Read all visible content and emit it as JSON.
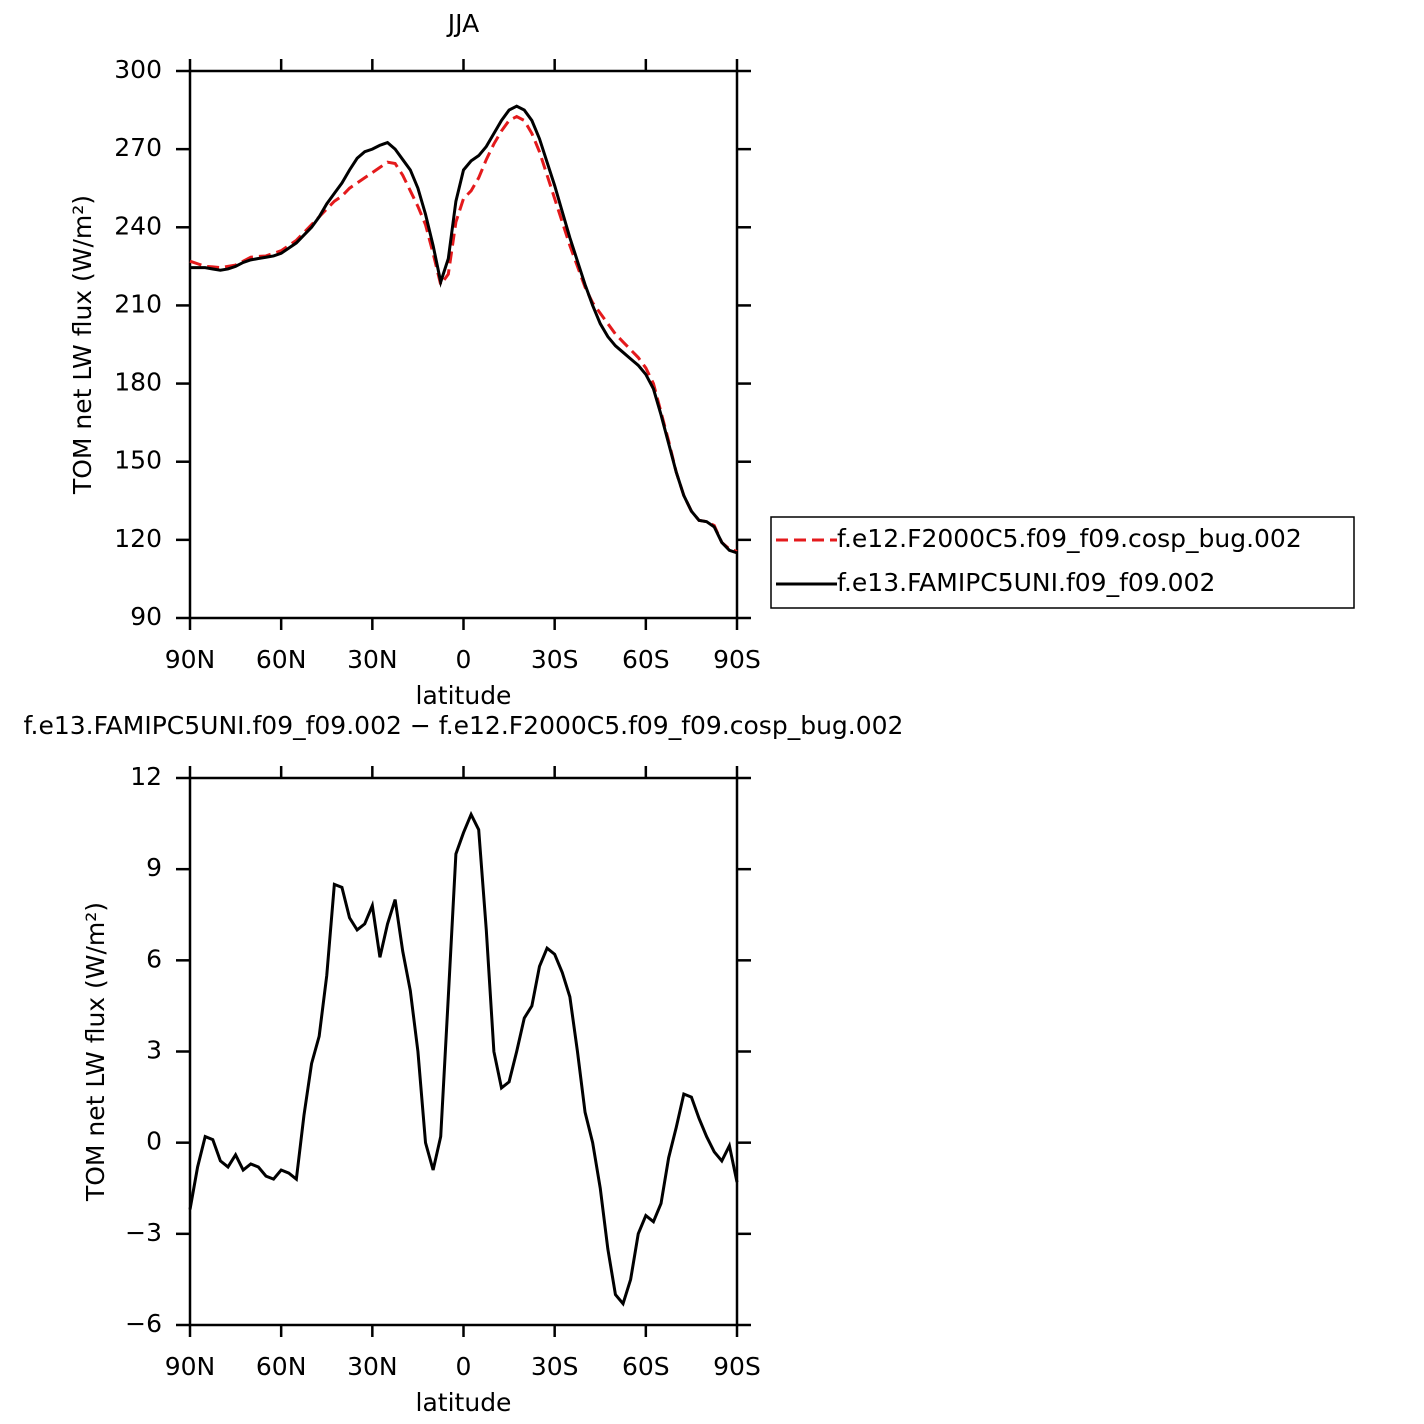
{
  "chart_data": [
    {
      "type": "line",
      "title": "JJA",
      "x_label": "latitude",
      "y_label": "TOM net LW flux (W/m²)",
      "x": [
        90,
        87.5,
        85,
        82.5,
        80,
        77.5,
        75,
        72.5,
        70,
        67.5,
        65,
        62.5,
        60,
        57.5,
        55,
        52.5,
        50,
        47.5,
        45,
        42.5,
        40,
        37.5,
        35,
        32.5,
        30,
        27.5,
        25,
        22.5,
        20,
        17.5,
        15,
        12.5,
        10,
        7.5,
        5,
        2.5,
        0,
        -2.5,
        -5,
        -7.5,
        -10,
        -12.5,
        -15,
        -17.5,
        -20,
        -22.5,
        -25,
        -27.5,
        -30,
        -32.5,
        -35,
        -37.5,
        -40,
        -42.5,
        -45,
        -47.5,
        -50,
        -52.5,
        -55,
        -57.5,
        -60,
        -62.5,
        -65,
        -67.5,
        -70,
        -72.5,
        -75,
        -77.5,
        -80,
        -82.5,
        -85,
        -87.5,
        -90
      ],
      "series": [
        {
          "name": "f.e12.F2000C5.f09_f09.cosp_bug.002",
          "color": "#e41a1c",
          "style": "dashed",
          "values": [
            227,
            226,
            225,
            224.8,
            224.5,
            225,
            225.5,
            227,
            228.5,
            228.8,
            229,
            230,
            231,
            233,
            235,
            238,
            241,
            244,
            247,
            250,
            252,
            255,
            257,
            259,
            261,
            263,
            265,
            264.5,
            260,
            254,
            248,
            241,
            230,
            218,
            222,
            242,
            251,
            254,
            259,
            266,
            272,
            277,
            281,
            282.5,
            281,
            276,
            269,
            260,
            251,
            242,
            233,
            225,
            217,
            211,
            207,
            203,
            199,
            196,
            193,
            190,
            186,
            180,
            169,
            158,
            146,
            137,
            131,
            127.5,
            127,
            125.5,
            119,
            116.5,
            115.5
          ]
        },
        {
          "name": "f.e13.FAMIPC5UNI.f09_f09.002",
          "color": "#000000",
          "style": "solid",
          "values": [
            224.5,
            224.5,
            224.5,
            224,
            223.5,
            224,
            225,
            226.5,
            227.5,
            228,
            228.5,
            229,
            230,
            232,
            234,
            237,
            240,
            244,
            249,
            253,
            257,
            262,
            266.5,
            269,
            270,
            271.5,
            272.5,
            270,
            266,
            262,
            255,
            245,
            233,
            219,
            228,
            250,
            262,
            265.5,
            267.5,
            271,
            276,
            281,
            285,
            286.5,
            285,
            281,
            274,
            265,
            256,
            246,
            236,
            227,
            218,
            210,
            203,
            198,
            194.5,
            192,
            189.5,
            187,
            183.5,
            178,
            168,
            157,
            146,
            137,
            131,
            127.5,
            127,
            125,
            119,
            116,
            115
          ]
        }
      ],
      "xlim": [
        90,
        -90
      ],
      "xticks": [
        {
          "value": 90,
          "label": "90N"
        },
        {
          "value": 60,
          "label": "60N"
        },
        {
          "value": 30,
          "label": "30N"
        },
        0,
        {
          "value": -30,
          "label": "30S"
        },
        {
          "value": -60,
          "label": "60S"
        },
        {
          "value": -90,
          "label": "90S"
        }
      ],
      "ylim": [
        90,
        300
      ],
      "yticks": [
        90,
        120,
        150,
        180,
        210,
        240,
        270,
        300
      ],
      "legend": "outside-right"
    },
    {
      "type": "line",
      "title": "f.e13.FAMIPC5UNI.f09_f09.002 − f.e12.F2000C5.f09_f09.cosp_bug.002",
      "x_label": "latitude",
      "y_label": "TOM net LW flux (W/m²)",
      "x": [
        90,
        87.5,
        85,
        82.5,
        80,
        77.5,
        75,
        72.5,
        70,
        67.5,
        65,
        62.5,
        60,
        57.5,
        55,
        52.5,
        50,
        47.5,
        45,
        42.5,
        40,
        37.5,
        35,
        32.5,
        30,
        27.5,
        25,
        22.5,
        20,
        17.5,
        15,
        12.5,
        10,
        7.5,
        5,
        2.5,
        0,
        -2.5,
        -5,
        -7.5,
        -10,
        -12.5,
        -15,
        -17.5,
        -20,
        -22.5,
        -25,
        -27.5,
        -30,
        -32.5,
        -35,
        -37.5,
        -40,
        -42.5,
        -45,
        -47.5,
        -50,
        -52.5,
        -55,
        -57.5,
        -60,
        -62.5,
        -65,
        -67.5,
        -70,
        -72.5,
        -75,
        -77.5,
        -80,
        -82.5,
        -85,
        -87.5,
        -90
      ],
      "values": [
        -2.2,
        -0.8,
        0.2,
        0.1,
        -0.6,
        -0.8,
        -0.4,
        -0.9,
        -0.7,
        -0.8,
        -1.1,
        -1.2,
        -0.9,
        -1.0,
        -1.2,
        0.9,
        2.6,
        3.5,
        5.5,
        8.5,
        8.4,
        7.4,
        7.0,
        7.2,
        7.8,
        6.1,
        7.2,
        8.0,
        6.3,
        5.0,
        3.0,
        0.0,
        -0.9,
        0.2,
        4.8,
        9.5,
        10.2,
        10.8,
        10.3,
        7.0,
        3.0,
        1.8,
        2.0,
        3.0,
        4.1,
        4.5,
        5.8,
        6.4,
        6.2,
        5.6,
        4.8,
        3.0,
        1.0,
        0.0,
        -1.5,
        -3.5,
        -5.0,
        -5.3,
        -4.5,
        -3.0,
        -2.4,
        -2.6,
        -2.0,
        -0.5,
        0.5,
        1.6,
        1.5,
        0.8,
        0.2,
        -0.3,
        -0.6,
        -0.1,
        -1.3
      ],
      "color": "#000000",
      "xlim": [
        90,
        -90
      ],
      "xticks": [
        {
          "value": 90,
          "label": "90N"
        },
        {
          "value": 60,
          "label": "60N"
        },
        {
          "value": 30,
          "label": "30N"
        },
        0,
        {
          "value": -30,
          "label": "30S"
        },
        {
          "value": -60,
          "label": "60S"
        },
        {
          "value": -90,
          "label": "90S"
        }
      ],
      "ylim": [
        -6,
        12
      ],
      "yticks": [
        -6,
        -3,
        0,
        3,
        6,
        9,
        12
      ]
    }
  ]
}
